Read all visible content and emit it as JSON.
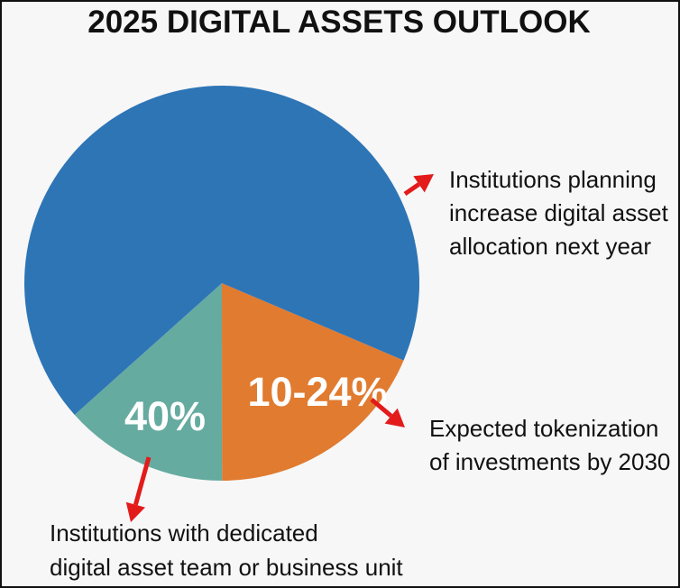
{
  "chart_data": {
    "type": "pie",
    "title": "2025 DIGITAL ASSETS OUTLOOK",
    "slices": [
      {
        "key": "tokenization",
        "share": 18.6,
        "label": "10-24%",
        "color": "#e07b30",
        "annotation": [
          "Expected tokenization",
          "of investments by 2030"
        ]
      },
      {
        "key": "dedicated_team",
        "share": 13.4,
        "label": "40%",
        "color": "#66aba0",
        "annotation": [
          "Institutions with dedicated",
          "digital asset team or business unit"
        ]
      },
      {
        "key": "increase_allocation",
        "share": 68.0,
        "label": "",
        "color": "#2e75b6",
        "annotation": [
          "Institutions planning",
          "increase digital asset",
          "allocation next year"
        ]
      }
    ],
    "arrow_color": "#e31b1b"
  }
}
